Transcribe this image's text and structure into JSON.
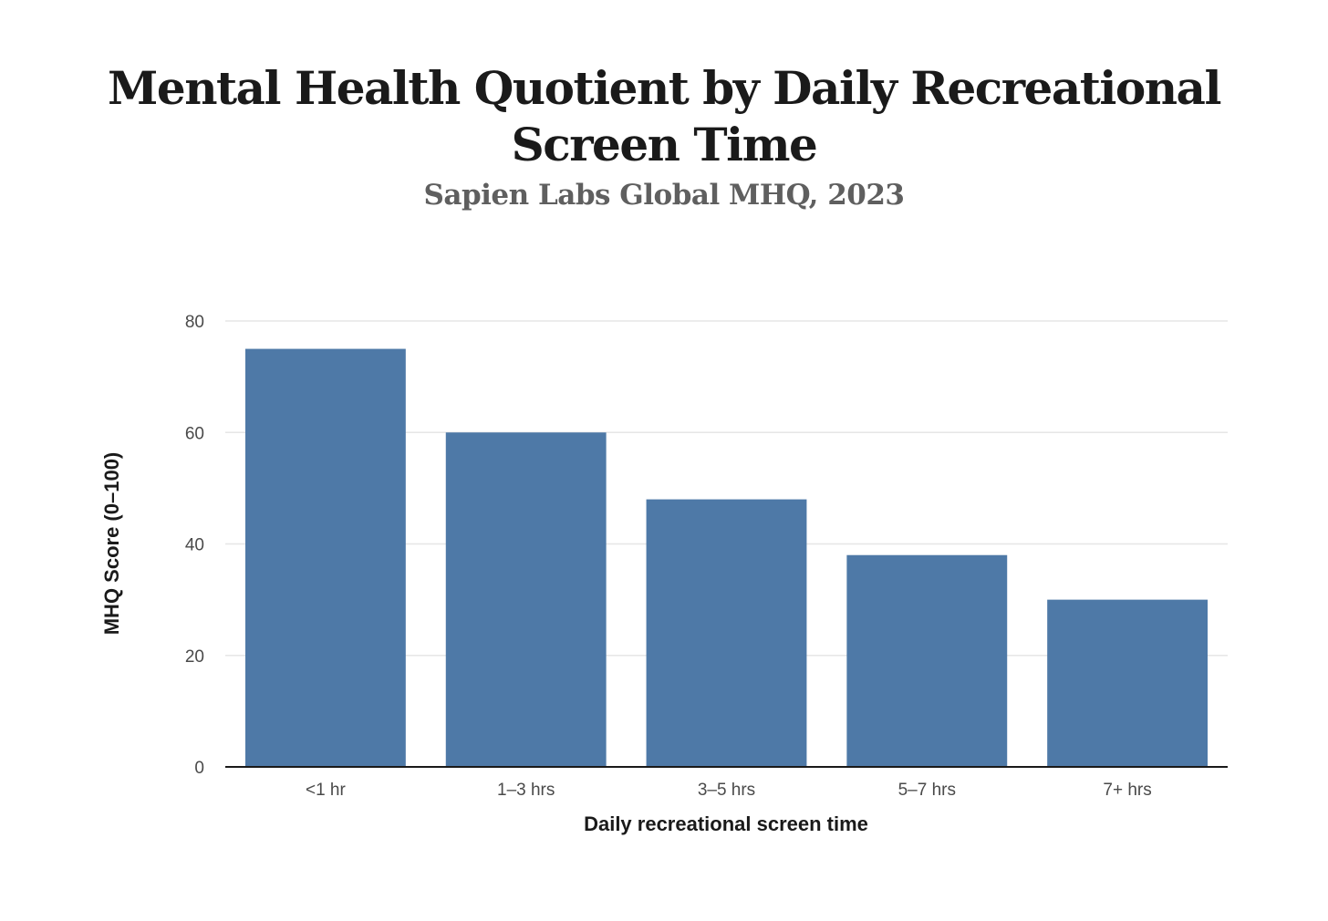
{
  "chart_data": {
    "type": "bar",
    "title": "Mental Health Quotient by Daily Recreational Screen Time",
    "subtitle": "Sapien Labs Global MHQ, 2023",
    "xlabel": "Daily recreational screen time",
    "ylabel": "MHQ Score (0–100)",
    "categories": [
      "<1 hr",
      "1–3 hrs",
      "3–5 hrs",
      "5–7 hrs",
      "7+ hrs"
    ],
    "values": [
      75,
      60,
      48,
      38,
      30
    ],
    "ylim": [
      0,
      80
    ],
    "yticks": [
      0,
      20,
      40,
      60,
      80
    ],
    "grid": true,
    "legend": "none",
    "bar_color": "#4e79a7",
    "grid_color": "#e6e6e6",
    "axis_color": "#1a1a1a"
  }
}
